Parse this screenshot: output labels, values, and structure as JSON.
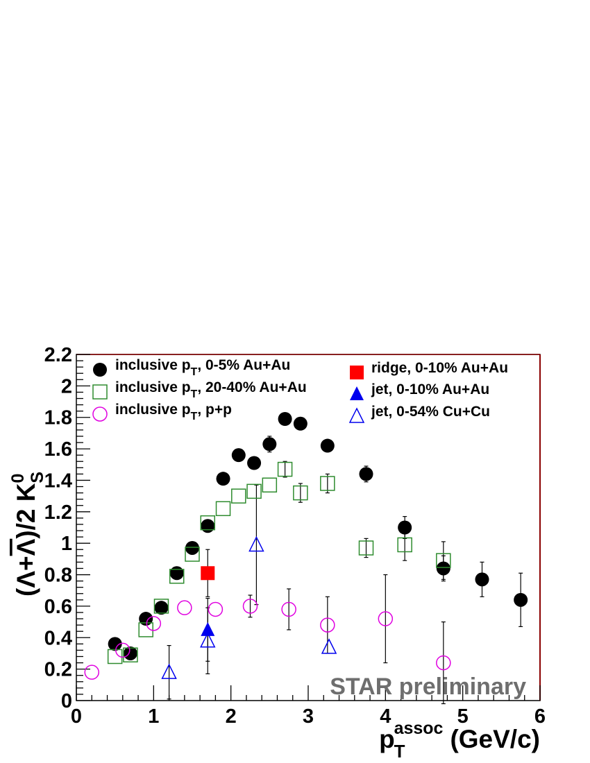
{
  "chart_data": {
    "type": "scatter",
    "xlabel": {
      "main": "p",
      "sub": "T",
      "sup": "assoc",
      "unit": "(GeV/c)"
    },
    "ylabel": {
      "pre": "(Λ+",
      "bar": "Λ",
      "mid": ")/2 K",
      "sup": "0",
      "sub": "S"
    },
    "xlim": [
      0,
      6
    ],
    "ylim": [
      0,
      2.2
    ],
    "x_ticks": [
      "0",
      "1",
      "2",
      "3",
      "4",
      "5",
      "6"
    ],
    "y_ticks": [
      "0",
      "0.2",
      "0.4",
      "0.6",
      "0.8",
      "1",
      "1.2",
      "1.4",
      "1.6",
      "1.8",
      "2",
      "2.2"
    ],
    "watermark": "STAR preliminary",
    "grid": false,
    "legend_placement": "top",
    "series": [
      {
        "name": "inclusive pT, 0-5% Au+Au",
        "legend": {
          "pre": "inclusive p",
          "sub": "T",
          "post": ", 0-5% Au+Au"
        },
        "marker": "filled-circle",
        "color": "#000000",
        "points": [
          {
            "x": 0.5,
            "y": 0.36,
            "e": 0.01
          },
          {
            "x": 0.7,
            "y": 0.3,
            "e": 0.01
          },
          {
            "x": 0.9,
            "y": 0.52,
            "e": 0.01
          },
          {
            "x": 1.1,
            "y": 0.59,
            "e": 0.01
          },
          {
            "x": 1.3,
            "y": 0.81,
            "e": 0.01
          },
          {
            "x": 1.5,
            "y": 0.97,
            "e": 0.01
          },
          {
            "x": 1.7,
            "y": 1.11,
            "e": 0.01
          },
          {
            "x": 1.9,
            "y": 1.41,
            "e": 0.01
          },
          {
            "x": 2.1,
            "y": 1.56,
            "e": 0.01
          },
          {
            "x": 2.3,
            "y": 1.51,
            "e": 0.02
          },
          {
            "x": 2.5,
            "y": 1.63,
            "e": 0.05
          },
          {
            "x": 2.7,
            "y": 1.79,
            "e": 0.02
          },
          {
            "x": 2.9,
            "y": 1.76,
            "e": 0.02
          },
          {
            "x": 3.25,
            "y": 1.62,
            "e": 0.02
          },
          {
            "x": 3.75,
            "y": 1.44,
            "e": 0.05
          },
          {
            "x": 4.25,
            "y": 1.1,
            "e": 0.07
          },
          {
            "x": 4.75,
            "y": 0.84,
            "e": 0.08
          },
          {
            "x": 5.25,
            "y": 0.77,
            "e": 0.11
          },
          {
            "x": 5.75,
            "y": 0.64,
            "e": 0.17
          }
        ]
      },
      {
        "name": "inclusive pT, 20-40% Au+Au",
        "legend": {
          "pre": "inclusive p",
          "sub": "T",
          "post": ", 20-40% Au+Au"
        },
        "marker": "open-square",
        "color": "#2e8b2e",
        "points": [
          {
            "x": 0.5,
            "y": 0.28,
            "e": 0.01
          },
          {
            "x": 0.7,
            "y": 0.29,
            "e": 0.01
          },
          {
            "x": 0.9,
            "y": 0.45,
            "e": 0.01
          },
          {
            "x": 1.1,
            "y": 0.6,
            "e": 0.01
          },
          {
            "x": 1.3,
            "y": 0.79,
            "e": 0.01
          },
          {
            "x": 1.5,
            "y": 0.93,
            "e": 0.01
          },
          {
            "x": 1.7,
            "y": 1.13,
            "e": 0.01
          },
          {
            "x": 1.9,
            "y": 1.22,
            "e": 0.01
          },
          {
            "x": 2.1,
            "y": 1.3,
            "e": 0.01
          },
          {
            "x": 2.3,
            "y": 1.33,
            "e": 0.01
          },
          {
            "x": 2.5,
            "y": 1.37,
            "e": 0.01
          },
          {
            "x": 2.7,
            "y": 1.47,
            "e": 0.05
          },
          {
            "x": 2.9,
            "y": 1.32,
            "e": 0.06
          },
          {
            "x": 3.25,
            "y": 1.38,
            "e": 0.06
          },
          {
            "x": 3.75,
            "y": 0.97,
            "e": 0.06
          },
          {
            "x": 4.25,
            "y": 0.99,
            "e": 0.1
          },
          {
            "x": 4.75,
            "y": 0.89,
            "e": 0.12
          }
        ]
      },
      {
        "name": "inclusive pT, p+p",
        "legend": {
          "pre": "inclusive p",
          "sub": "T",
          "post": ", p+p"
        },
        "marker": "open-circle",
        "color": "#e000e0",
        "points": [
          {
            "x": 0.2,
            "y": 0.18,
            "e": 0.01
          },
          {
            "x": 0.6,
            "y": 0.32,
            "e": 0.01
          },
          {
            "x": 1.0,
            "y": 0.49,
            "e": 0.01
          },
          {
            "x": 1.4,
            "y": 0.59,
            "e": 0.01
          },
          {
            "x": 1.8,
            "y": 0.58,
            "e": 0.01
          },
          {
            "x": 2.25,
            "y": 0.6,
            "e": 0.07
          },
          {
            "x": 2.75,
            "y": 0.58,
            "e": 0.13
          },
          {
            "x": 3.25,
            "y": 0.48,
            "e": 0.18
          },
          {
            "x": 4.0,
            "y": 0.52,
            "e": 0.28
          },
          {
            "x": 4.75,
            "y": 0.24,
            "e": 0.26
          }
        ]
      },
      {
        "name": "ridge, 0-10% Au+Au",
        "legend": {
          "pre": "ridge, 0-10% Au+Au",
          "sub": "",
          "post": ""
        },
        "marker": "filled-square",
        "color": "#ff0000",
        "points": [
          {
            "x": 1.7,
            "y": 0.81,
            "e": 0.15
          }
        ]
      },
      {
        "name": "jet, 0-10% Au+Au",
        "legend": {
          "pre": "jet, 0-10% Au+Au",
          "sub": "",
          "post": ""
        },
        "marker": "filled-triangle",
        "color": "#0000ee",
        "points": [
          {
            "x": 1.7,
            "y": 0.45,
            "e": 0.2
          }
        ]
      },
      {
        "name": "jet, 0-54% Cu+Cu",
        "legend": {
          "pre": "jet, 0-54% Cu+Cu",
          "sub": "",
          "post": ""
        },
        "marker": "open-triangle",
        "color": "#0000ee",
        "points": [
          {
            "x": 1.2,
            "y": 0.18,
            "e": 0.17
          },
          {
            "x": 1.7,
            "y": 0.38,
            "e": 0.21
          },
          {
            "x": 2.33,
            "y": 0.99,
            "e": 0.38
          },
          {
            "x": 3.27,
            "y": 0.34,
            "e": 0.01
          }
        ]
      }
    ]
  }
}
